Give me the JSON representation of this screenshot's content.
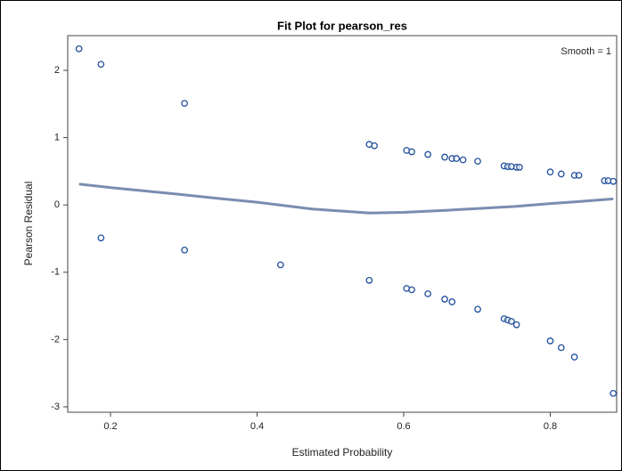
{
  "chart_data": {
    "type": "scatter",
    "title": "Fit Plot for pearson_res",
    "annotation": "Smooth = 1",
    "xlabel": "Estimated Probability",
    "ylabel": "Pearson Residual",
    "xlim": [
      0.1416,
      0.8906
    ],
    "ylim": [
      -3.08,
      2.516
    ],
    "xticks": [
      0.2,
      0.4,
      0.6,
      0.8
    ],
    "yticks": [
      -3,
      -2,
      -1,
      0,
      1,
      2
    ],
    "series": [
      {
        "mode": "markers",
        "color": "#1f4e9a",
        "x": [
          0.157,
          0.187,
          0.301,
          0.187,
          0.301,
          0.432,
          0.553,
          0.56,
          0.553,
          0.604,
          0.611,
          0.604,
          0.611,
          0.633,
          0.633,
          0.656,
          0.656,
          0.666,
          0.672,
          0.666,
          0.681,
          0.701,
          0.701,
          0.737,
          0.742,
          0.747,
          0.737,
          0.742,
          0.747,
          0.754,
          0.758,
          0.754,
          0.8,
          0.8,
          0.815,
          0.815,
          0.833,
          0.839,
          0.833,
          0.874,
          0.879,
          0.886,
          0.886
        ],
        "y": [
          2.32,
          2.09,
          1.51,
          -0.49,
          -0.67,
          -0.89,
          0.9,
          0.88,
          -1.12,
          0.81,
          0.79,
          -1.24,
          -1.26,
          0.75,
          -1.32,
          0.71,
          -1.4,
          0.69,
          0.69,
          -1.44,
          0.67,
          0.65,
          -1.55,
          0.58,
          0.57,
          0.57,
          -1.69,
          -1.71,
          -1.73,
          0.56,
          0.56,
          -1.78,
          0.49,
          -2.02,
          0.46,
          -2.12,
          0.44,
          0.44,
          -2.26,
          0.36,
          0.36,
          0.35,
          -2.8
        ]
      },
      {
        "mode": "line",
        "color": "#7a8db0",
        "x": [
          0.157,
          0.207,
          0.292,
          0.353,
          0.4,
          0.475,
          0.553,
          0.6,
          0.657,
          0.706,
          0.754,
          0.8,
          0.839,
          0.886
        ],
        "y": [
          0.31,
          0.25,
          0.16,
          0.09,
          0.04,
          -0.06,
          -0.12,
          -0.11,
          -0.08,
          -0.05,
          -0.02,
          0.02,
          0.05,
          0.09
        ]
      }
    ]
  }
}
